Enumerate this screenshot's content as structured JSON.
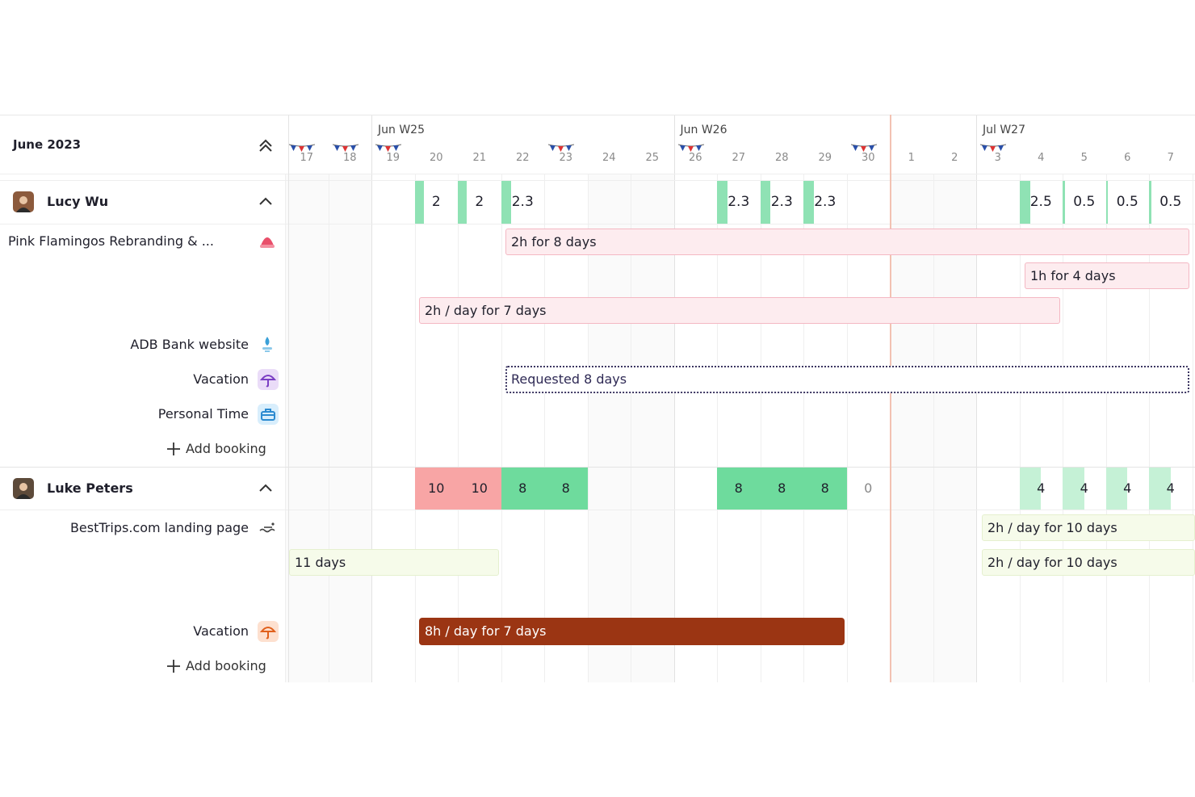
{
  "header": {
    "month": "June 2023",
    "weeks": [
      "Jun W25",
      "Jun W26",
      "Jul W27"
    ],
    "days": [
      17,
      18,
      19,
      20,
      21,
      22,
      23,
      24,
      25,
      26,
      27,
      28,
      29,
      30,
      1,
      2,
      3,
      4,
      5,
      6,
      7
    ]
  },
  "people": [
    {
      "name": "Lucy Wu",
      "capacity": [
        null,
        null,
        null,
        2,
        2,
        2.3,
        null,
        null,
        null,
        null,
        2.3,
        2.3,
        2.3,
        null,
        null,
        null,
        null,
        2.5,
        0.5,
        0.5,
        0.5
      ],
      "assignments": [
        {
          "label": "Pink Flamingos Rebranding & ...",
          "bookings": [
            "2h for 8 days",
            "1h for 4 days",
            "2h / day for 7 days"
          ]
        },
        {
          "label": "ADB Bank website",
          "bookings": []
        },
        {
          "label": "Vacation",
          "bookings": [
            "Requested 8 days"
          ]
        },
        {
          "label": "Personal Time",
          "bookings": []
        }
      ],
      "add": "Add booking"
    },
    {
      "name": "Luke Peters",
      "capacity": [
        null,
        null,
        null,
        10,
        10,
        8,
        8,
        null,
        null,
        null,
        8,
        8,
        8,
        0,
        null,
        null,
        null,
        4,
        4,
        4,
        4
      ],
      "assignments": [
        {
          "label": "BestTrips.com landing page",
          "bookings": [
            "2h / day for 10 days",
            "11 days",
            "2h / day for 10 days"
          ]
        },
        {
          "label": "Vacation",
          "bookings": [
            "8h / day for 7 days"
          ]
        }
      ],
      "add": "Add booking"
    }
  ]
}
